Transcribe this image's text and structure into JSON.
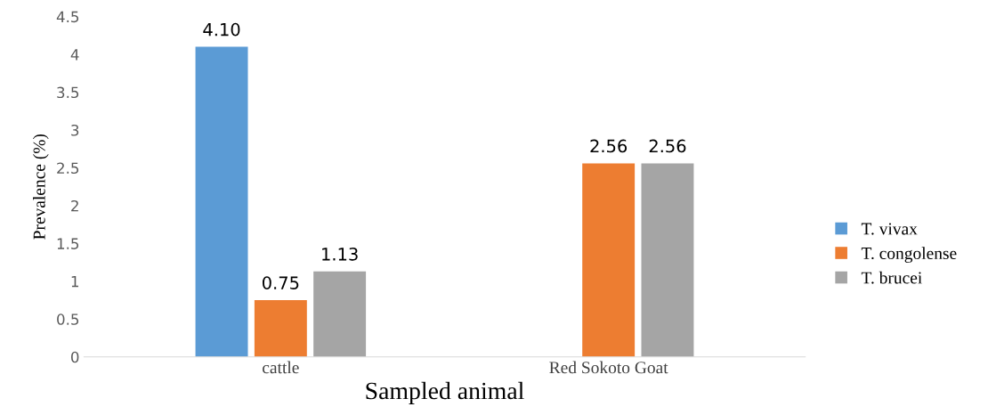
{
  "chart_data": {
    "type": "bar",
    "xlabel": "Sampled animal",
    "ylabel": "Prevalence (%)",
    "categories": [
      "cattle",
      "Red Sokoto Goat"
    ],
    "series": [
      {
        "name": "T. vivax",
        "color": "#5b9bd5",
        "values": [
          4.1,
          null
        ],
        "value_labels": [
          "4.10",
          null
        ]
      },
      {
        "name": "T. congolense",
        "color": "#ed7d31",
        "values": [
          0.75,
          2.56
        ],
        "value_labels": [
          "0.75",
          "2.56"
        ]
      },
      {
        "name": "T. brucei",
        "color": "#a5a5a5",
        "values": [
          1.13,
          2.56
        ],
        "value_labels": [
          "1.13",
          "2.56"
        ]
      }
    ],
    "ylim": [
      0,
      4.5
    ],
    "yticks": [
      0,
      0.5,
      1,
      1.5,
      2,
      2.5,
      3,
      3.5,
      4,
      4.5
    ],
    "grid": false,
    "legend": "right"
  }
}
